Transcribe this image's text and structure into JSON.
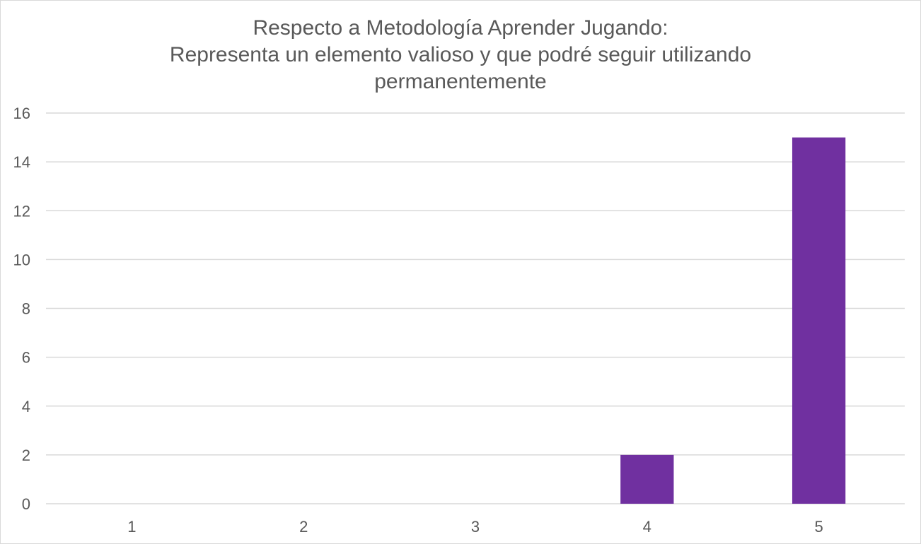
{
  "chart_data": {
    "type": "bar",
    "title_lines": [
      "Respecto a Metodología Aprender Jugando:",
      "Representa un elemento valioso y que podré seguir utilizando",
      "permanentemente"
    ],
    "categories": [
      "1",
      "2",
      "3",
      "4",
      "5"
    ],
    "values": [
      0,
      0,
      0,
      2,
      15
    ],
    "ylim": [
      0,
      16
    ],
    "yticks": [
      0,
      2,
      4,
      6,
      8,
      10,
      12,
      14,
      16
    ],
    "xlabel": "",
    "ylabel": "",
    "grid": true,
    "legend": "none",
    "bar_color": "#7030A0",
    "grid_color": "#d9d9d9",
    "text_color": "#595959"
  }
}
